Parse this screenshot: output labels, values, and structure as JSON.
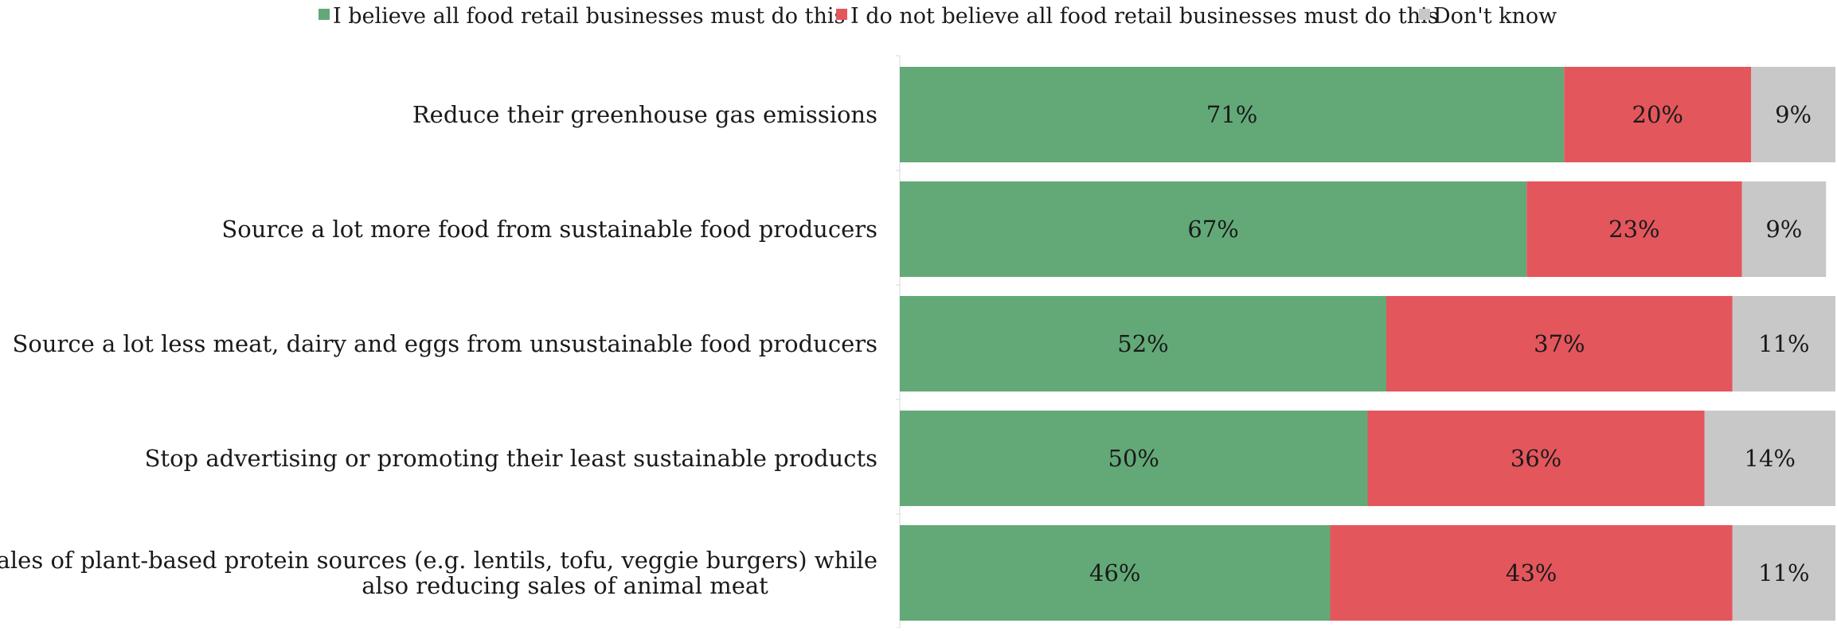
{
  "chart_data": {
    "type": "bar",
    "orientation": "horizontal",
    "stacked": true,
    "percent_stacked": true,
    "legend_position": "top",
    "grid": false,
    "xlim": [
      0,
      100
    ],
    "categories": [
      "Reduce their greenhouse gas emissions",
      "Source a lot more food from sustainable food producers",
      "Source a lot less meat, dairy and eggs from unsustainable food producers",
      "Stop advertising or promoting their least sustainable products",
      "Increase sales of plant-based protein sources (e.g. lentils, tofu, veggie burgers) while also reducing sales of animal meat"
    ],
    "category_label_lines": [
      [
        "Reduce their greenhouse gas emissions"
      ],
      [
        "Source a lot more food from sustainable food producers"
      ],
      [
        "Source a lot less meat, dairy and eggs from unsustainable food producers"
      ],
      [
        "Stop advertising or promoting their least sustainable products"
      ],
      [
        "Increase sales of plant-based protein sources (e.g. lentils, tofu, veggie burgers) while",
        "also reducing sales of animal meat"
      ]
    ],
    "series": [
      {
        "name": "I believe all food retail businesses must do this",
        "color": "#63a978",
        "values": [
          71,
          67,
          52,
          50,
          46
        ],
        "labels": [
          "71%",
          "67%",
          "52%",
          "50%",
          "46%"
        ]
      },
      {
        "name": "I do not believe all food retail businesses must do this",
        "color": "#e3565c",
        "values": [
          20,
          23,
          37,
          36,
          43
        ],
        "labels": [
          "20%",
          "23%",
          "37%",
          "36%",
          "43%"
        ]
      },
      {
        "name": "Don't know",
        "color": "#c8c8c8",
        "values": [
          9,
          9,
          11,
          14,
          11
        ],
        "labels": [
          "9%",
          "9%",
          "11%",
          "14%",
          "11%"
        ]
      }
    ]
  }
}
